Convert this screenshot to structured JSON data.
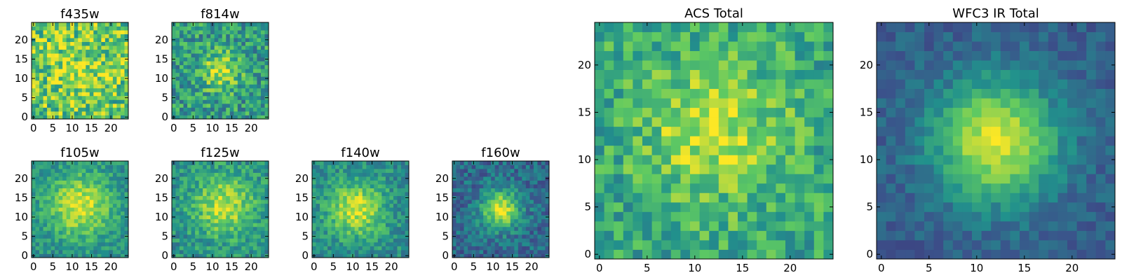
{
  "chart_data": [
    {
      "type": "heatmap",
      "title": "f435w",
      "grid": [
        25,
        25
      ],
      "x_ticks": [
        "0",
        "5",
        "10",
        "15",
        "20"
      ],
      "y_ticks": [
        "0",
        "5",
        "10",
        "15",
        "20"
      ],
      "xlim": [
        -0.5,
        24.5
      ],
      "ylim": [
        -0.5,
        24.5
      ],
      "colormap": "viridis",
      "peak": [
        12,
        12
      ],
      "spread": 6,
      "noise": 0.55,
      "base": 0.72,
      "amp": 0.15,
      "seed": 11
    },
    {
      "type": "heatmap",
      "title": "f814w",
      "grid": [
        25,
        25
      ],
      "x_ticks": [
        "0",
        "5",
        "10",
        "15",
        "20"
      ],
      "y_ticks": [
        "0",
        "5",
        "10",
        "15",
        "20"
      ],
      "xlim": [
        -0.5,
        24.5
      ],
      "ylim": [
        -0.5,
        24.5
      ],
      "colormap": "viridis",
      "peak": [
        12,
        12
      ],
      "spread": 3.5,
      "noise": 0.45,
      "base": 0.55,
      "amp": 0.35,
      "seed": 23
    },
    {
      "type": "heatmap",
      "title": "f105w",
      "grid": [
        25,
        25
      ],
      "x_ticks": [
        "0",
        "5",
        "10",
        "15",
        "20"
      ],
      "y_ticks": [
        "0",
        "5",
        "10",
        "15",
        "20"
      ],
      "xlim": [
        -0.5,
        24.5
      ],
      "ylim": [
        -0.5,
        24.5
      ],
      "colormap": "viridis",
      "peak": [
        12,
        13
      ],
      "spread": 6,
      "noise": 0.28,
      "base": 0.48,
      "amp": 0.45,
      "seed": 37
    },
    {
      "type": "heatmap",
      "title": "f125w",
      "grid": [
        25,
        25
      ],
      "x_ticks": [
        "0",
        "5",
        "10",
        "15",
        "20"
      ],
      "y_ticks": [
        "0",
        "5",
        "10",
        "15",
        "20"
      ],
      "xlim": [
        -0.5,
        24.5
      ],
      "ylim": [
        -0.5,
        24.5
      ],
      "colormap": "viridis",
      "peak": [
        13,
        13
      ],
      "spread": 5.5,
      "noise": 0.32,
      "base": 0.5,
      "amp": 0.4,
      "seed": 41
    },
    {
      "type": "heatmap",
      "title": "f140w",
      "grid": [
        25,
        25
      ],
      "x_ticks": [
        "0",
        "5",
        "10",
        "15",
        "20"
      ],
      "y_ticks": [
        "0",
        "5",
        "10",
        "15",
        "20"
      ],
      "xlim": [
        -0.5,
        24.5
      ],
      "ylim": [
        -0.5,
        24.5
      ],
      "colormap": "viridis",
      "peak": [
        11,
        12
      ],
      "spread": 5,
      "noise": 0.3,
      "base": 0.48,
      "amp": 0.45,
      "seed": 53
    },
    {
      "type": "heatmap",
      "title": "f160w",
      "grid": [
        25,
        25
      ],
      "x_ticks": [
        "0",
        "5",
        "10",
        "15",
        "20"
      ],
      "y_ticks": [
        "0",
        "5",
        "10",
        "15",
        "20"
      ],
      "xlim": [
        -0.5,
        24.5
      ],
      "ylim": [
        -0.5,
        24.5
      ],
      "colormap": "viridis",
      "peak": [
        12,
        12
      ],
      "spread": 3.5,
      "noise": 0.3,
      "base": 0.35,
      "amp": 0.6,
      "seed": 67
    },
    {
      "type": "heatmap",
      "title": "ACS Total",
      "grid": [
        25,
        25
      ],
      "x_ticks": [
        "0",
        "5",
        "10",
        "15",
        "20"
      ],
      "y_ticks": [
        "0",
        "5",
        "10",
        "15",
        "20"
      ],
      "xlim": [
        -0.5,
        24.5
      ],
      "ylim": [
        -0.5,
        24.5
      ],
      "colormap": "viridis",
      "peak": [
        12,
        13
      ],
      "spread": 5,
      "noise": 0.38,
      "base": 0.6,
      "amp": 0.32,
      "seed": 79
    },
    {
      "type": "heatmap",
      "title": "WFC3 IR Total",
      "grid": [
        25,
        25
      ],
      "x_ticks": [
        "0",
        "5",
        "10",
        "15",
        "20"
      ],
      "y_ticks": [
        "0",
        "5",
        "10",
        "15",
        "20"
      ],
      "xlim": [
        -0.5,
        24.5
      ],
      "ylim": [
        -0.5,
        24.5
      ],
      "colormap": "viridis",
      "peak": [
        12,
        12
      ],
      "spread": 4.5,
      "noise": 0.18,
      "base": 0.3,
      "amp": 0.65,
      "seed": 97
    }
  ]
}
